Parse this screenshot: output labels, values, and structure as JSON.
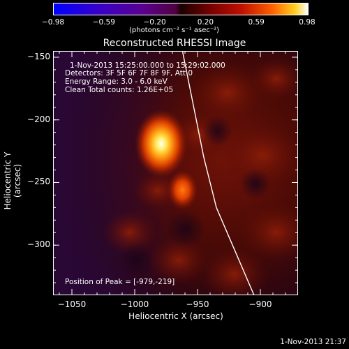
{
  "colorbar": {
    "ticks": [
      "-0.98",
      "-0.59",
      "-0.20",
      "0.20",
      "0.59",
      "0.98"
    ],
    "units": "(photons cm⁻² s⁻¹ asec⁻²)"
  },
  "chart_data": {
    "type": "heatmap",
    "title": "Reconstructed RHESSI Image",
    "xlabel": "Heliocentric X (arcsec)",
    "ylabel": "Heliocentric Y (arcsec)",
    "xlim": [
      -1065,
      -870
    ],
    "ylim": [
      -340,
      -145
    ],
    "x_ticks": [
      -1050,
      -1000,
      -950,
      -900
    ],
    "y_ticks": [
      -150,
      -200,
      -250,
      -300
    ],
    "x_tick_labels": [
      "−1050",
      "−1000",
      "−950",
      "−900"
    ],
    "y_tick_labels": [
      "−150",
      "−200",
      "−250",
      "−300"
    ],
    "sources": [
      {
        "x": -979,
        "y": -219,
        "intensity": 0.98
      },
      {
        "x": -962,
        "y": -256,
        "intensity": 0.6
      }
    ],
    "limb_curve": [
      [
        -962,
        -145
      ],
      [
        -953,
        -190
      ],
      [
        -945,
        -230
      ],
      [
        -935,
        -270
      ],
      [
        -920,
        -305
      ],
      [
        -905,
        -340
      ]
    ],
    "annotations": {
      "time": "1-Nov-2013 15:25:00.000 to 15:29:02.000",
      "detectors": "Detectors: 3F 5F 6F 7F 8F 9F, Att 0",
      "energy": "Energy Range: 3.0 - 6.0 keV",
      "clean": "Clean    Total counts: 1.26E+05",
      "peak": "Position of Peak = [-979,-219]"
    }
  },
  "footer": {
    "timestamp": "1-Nov-2013 21:37"
  }
}
